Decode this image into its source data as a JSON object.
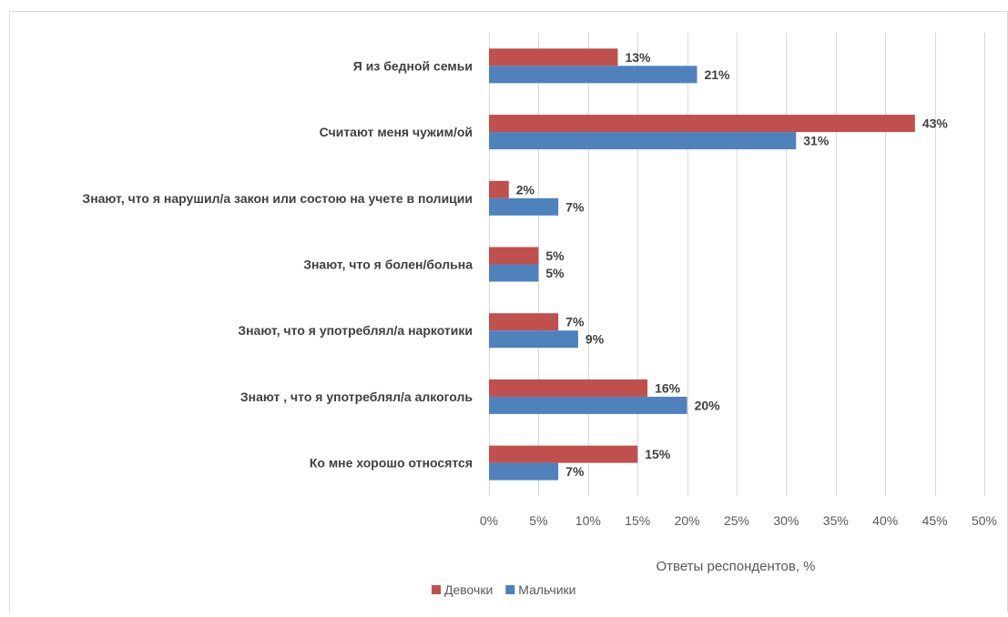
{
  "chart_data": {
    "type": "bar",
    "orientation": "horizontal",
    "categories": [
      "Я из бедной семьи",
      "Считают меня чужим/ой",
      "Знают, что я нарушил/а закон или состою на учете в полиции",
      "Знают, что я болен/больна",
      "Знают, что я употреблял/а наркотики",
      "Знают , что я употреблял/а алкоголь",
      "Ко мне хорошо относятся"
    ],
    "series": [
      {
        "name": "Девочки",
        "color": "#C0504D",
        "values": [
          13,
          43,
          2,
          5,
          7,
          16,
          15
        ]
      },
      {
        "name": "Мальчики",
        "color": "#4F81BD",
        "values": [
          21,
          31,
          7,
          5,
          9,
          20,
          7
        ]
      }
    ],
    "value_suffix": "%",
    "xlim": [
      0,
      50
    ],
    "xticks": [
      0,
      5,
      10,
      15,
      20,
      25,
      30,
      35,
      40,
      45,
      50
    ],
    "xtick_labels": [
      "0%",
      "5%",
      "10%",
      "15%",
      "20%",
      "25%",
      "30%",
      "35%",
      "40%",
      "45%",
      "50%"
    ],
    "xlabel": "Ответы респондентов, %",
    "grid": "vertical",
    "legend_position": "bottom"
  }
}
